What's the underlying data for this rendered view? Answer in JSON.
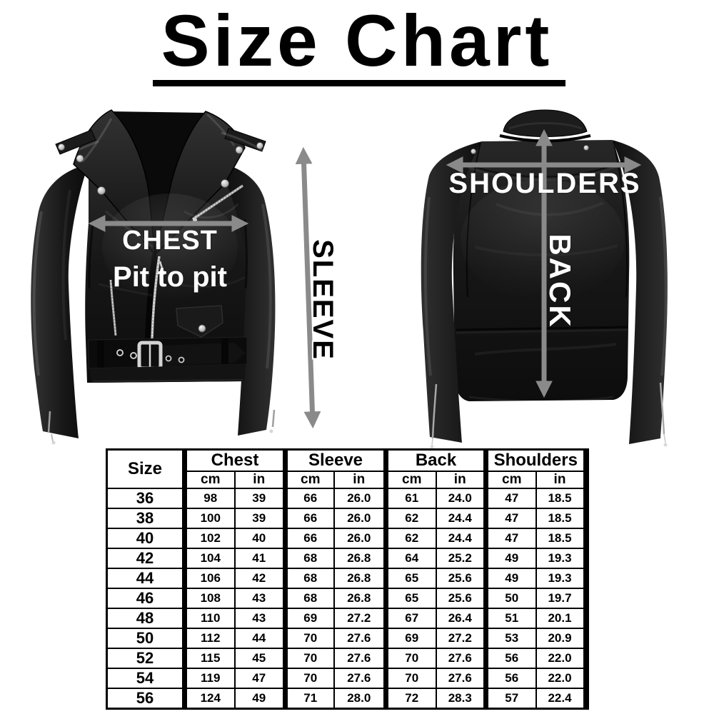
{
  "title": "Size Chart",
  "labels": {
    "chest": "CHEST",
    "pit_to_pit": "Pit to pit",
    "sleeve": "SLEEVE",
    "shoulders": "SHOULDERS",
    "back": "BACK"
  },
  "colors": {
    "arrow": "#8a8a8a",
    "label_white": "#ffffff",
    "label_black": "#000000",
    "table_border": "#000000",
    "background": "#ffffff"
  },
  "size_table": {
    "size_header": "Size",
    "group_headers": [
      "Chest",
      "Sleeve",
      "Back",
      "Shoulders"
    ],
    "unit_headers": [
      "cm",
      "in"
    ],
    "rows": [
      [
        "36",
        "98",
        "39",
        "66",
        "26.0",
        "61",
        "24.0",
        "47",
        "18.5"
      ],
      [
        "38",
        "100",
        "39",
        "66",
        "26.0",
        "62",
        "24.4",
        "47",
        "18.5"
      ],
      [
        "40",
        "102",
        "40",
        "66",
        "26.0",
        "62",
        "24.4",
        "47",
        "18.5"
      ],
      [
        "42",
        "104",
        "41",
        "68",
        "26.8",
        "64",
        "25.2",
        "49",
        "19.3"
      ],
      [
        "44",
        "106",
        "42",
        "68",
        "26.8",
        "65",
        "25.6",
        "49",
        "19.3"
      ],
      [
        "46",
        "108",
        "43",
        "68",
        "26.8",
        "65",
        "25.6",
        "50",
        "19.7"
      ],
      [
        "48",
        "110",
        "43",
        "69",
        "27.2",
        "67",
        "26.4",
        "51",
        "20.1"
      ],
      [
        "50",
        "112",
        "44",
        "70",
        "27.6",
        "69",
        "27.2",
        "53",
        "20.9"
      ],
      [
        "52",
        "115",
        "45",
        "70",
        "27.6",
        "70",
        "27.6",
        "56",
        "22.0"
      ],
      [
        "54",
        "119",
        "47",
        "70",
        "27.6",
        "70",
        "27.6",
        "56",
        "22.0"
      ],
      [
        "56",
        "124",
        "49",
        "71",
        "28.0",
        "72",
        "28.3",
        "57",
        "22.4"
      ]
    ]
  }
}
